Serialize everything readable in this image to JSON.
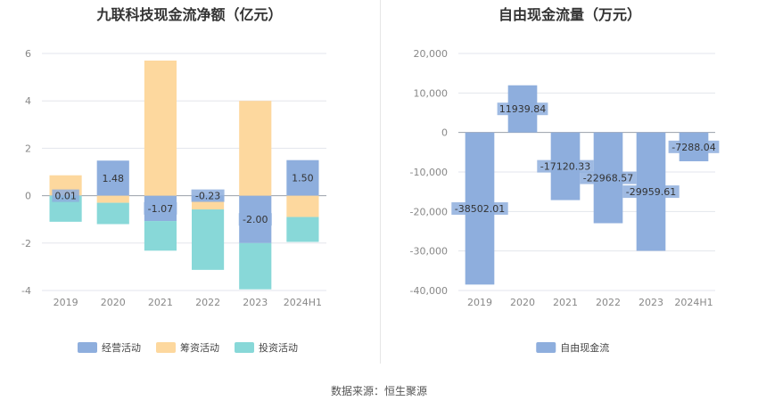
{
  "source_text": "数据来源：恒生聚源",
  "chart_data": [
    {
      "type": "bar",
      "stacked": true,
      "title": "九联科技现金流净额（亿元）",
      "categories": [
        "2019",
        "2020",
        "2021",
        "2022",
        "2023",
        "2024H1"
      ],
      "ylim": [
        -4,
        6
      ],
      "yticks": [
        -4,
        -2,
        0,
        2,
        4,
        6
      ],
      "grid": true,
      "legend_position": "bottom",
      "series": [
        {
          "name": "经营活动",
          "color": "#8eaedd",
          "values": [
            0.01,
            1.48,
            -1.07,
            -0.23,
            -2.0,
            1.5
          ],
          "labels": [
            "0.01",
            "1.48",
            "-1.07",
            "-0.23",
            "-2.00",
            "1.50"
          ]
        },
        {
          "name": "筹资活动",
          "color": "#fdd89e",
          "values": [
            0.85,
            -0.3,
            5.7,
            -0.35,
            4.0,
            -0.9
          ]
        },
        {
          "name": "投资活动",
          "color": "#88d8d8",
          "values": [
            -1.1,
            -0.9,
            -1.25,
            -2.55,
            -1.95,
            -1.05
          ]
        }
      ]
    },
    {
      "type": "bar",
      "title": "自由现金流量（万元）",
      "categories": [
        "2019",
        "2020",
        "2021",
        "2022",
        "2023",
        "2024H1"
      ],
      "ylim": [
        -40000,
        20000
      ],
      "yticks": [
        -40000,
        -30000,
        -20000,
        -10000,
        0,
        10000,
        20000
      ],
      "ytick_labels": [
        "-40,000",
        "-30,000",
        "-20,000",
        "-10,000",
        "0",
        "10,000",
        "20,000"
      ],
      "grid": true,
      "legend_position": "bottom",
      "series": [
        {
          "name": "自由现金流",
          "color": "#8eaedd",
          "values": [
            -38502.01,
            11939.84,
            -17120.33,
            -22968.57,
            -29959.61,
            -7288.04
          ],
          "labels": [
            "-38502.01",
            "11939.84",
            "-17120.33",
            "-22968.57",
            "-29959.61",
            "-7288.04"
          ]
        }
      ]
    }
  ]
}
